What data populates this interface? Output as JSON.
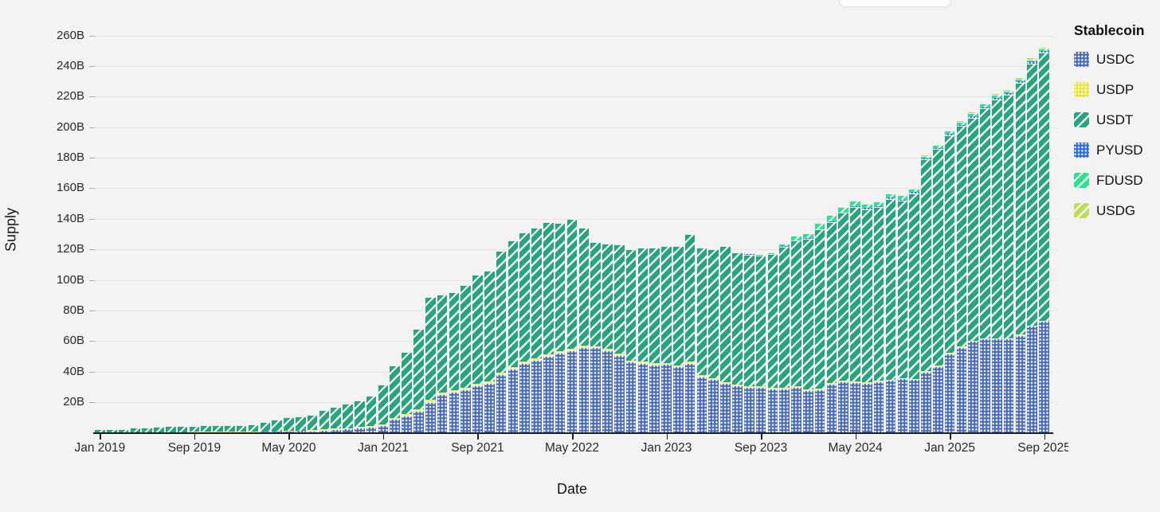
{
  "axes": {
    "y_title": "Supply",
    "x_title": "Date"
  },
  "legend": {
    "title": "Stablecoin",
    "items": [
      {
        "id": "usdc",
        "label": "USDC",
        "color": "#4a6cb8",
        "pattern": "dots"
      },
      {
        "id": "usdp",
        "label": "USDP",
        "color": "#e8e53e",
        "pattern": "dots"
      },
      {
        "id": "usdt",
        "label": "USDT",
        "color": "#2aa47c",
        "pattern": "stripes"
      },
      {
        "id": "pyusd",
        "label": "PYUSD",
        "color": "#2b6be0",
        "pattern": "dots"
      },
      {
        "id": "fdusd",
        "label": "FDUSD",
        "color": "#2fe08d",
        "pattern": "stripes"
      },
      {
        "id": "usdg",
        "label": "USDG",
        "color": "#bcdc5a",
        "pattern": "stripes"
      }
    ]
  },
  "chart_data": {
    "type": "bar",
    "stacked": true,
    "title": "",
    "xlabel": "Date",
    "ylabel": "Supply",
    "unit": "billions",
    "ylim": [
      0,
      260
    ],
    "ytick_step": 20,
    "ytick_labels": [
      "20B",
      "40B",
      "60B",
      "80B",
      "100B",
      "120B",
      "140B",
      "160B",
      "180B",
      "200B",
      "220B",
      "240B",
      "260B"
    ],
    "xtick_labels": [
      "Jan 2019",
      "Sep 2019",
      "May 2020",
      "Jan 2021",
      "Sep 2021",
      "May 2022",
      "Jan 2023",
      "Sep 2023",
      "May 2024",
      "Jan 2025",
      "Sep 2025"
    ],
    "xtick_indices": [
      0,
      8,
      16,
      24,
      32,
      40,
      48,
      56,
      64,
      72,
      80
    ],
    "grid": true,
    "legend_position": "right",
    "legend_title": "Stablecoin",
    "categories": [
      "Jan 2019",
      "Feb 2019",
      "Mar 2019",
      "Apr 2019",
      "May 2019",
      "Jun 2019",
      "Jul 2019",
      "Aug 2019",
      "Sep 2019",
      "Oct 2019",
      "Nov 2019",
      "Dec 2019",
      "Jan 2020",
      "Feb 2020",
      "Mar 2020",
      "Apr 2020",
      "May 2020",
      "Jun 2020",
      "Jul 2020",
      "Aug 2020",
      "Sep 2020",
      "Oct 2020",
      "Nov 2020",
      "Dec 2020",
      "Jan 2021",
      "Feb 2021",
      "Mar 2021",
      "Apr 2021",
      "May 2021",
      "Jun 2021",
      "Jul 2021",
      "Aug 2021",
      "Sep 2021",
      "Oct 2021",
      "Nov 2021",
      "Dec 2021",
      "Jan 2022",
      "Feb 2022",
      "Mar 2022",
      "Apr 2022",
      "May 2022",
      "Jun 2022",
      "Jul 2022",
      "Aug 2022",
      "Sep 2022",
      "Oct 2022",
      "Nov 2022",
      "Dec 2022",
      "Jan 2023",
      "Feb 2023",
      "Mar 2023",
      "Apr 2023",
      "May 2023",
      "Jun 2023",
      "Jul 2023",
      "Aug 2023",
      "Sep 2023",
      "Oct 2023",
      "Nov 2023",
      "Dec 2023",
      "Jan 2024",
      "Feb 2024",
      "Mar 2024",
      "Apr 2024",
      "May 2024",
      "Jun 2024",
      "Jul 2024",
      "Aug 2024",
      "Sep 2024",
      "Oct 2024",
      "Nov 2024",
      "Dec 2024",
      "Jan 2025",
      "Feb 2025",
      "Mar 2025",
      "Apr 2025",
      "May 2025",
      "Jun 2025",
      "Jul 2025",
      "Aug 2025",
      "Sep 2025"
    ],
    "series": [
      {
        "name": "USDC",
        "values": [
          0.25,
          0.25,
          0.25,
          0.3,
          0.35,
          0.35,
          0.4,
          0.4,
          0.45,
          0.45,
          0.5,
          0.5,
          0.45,
          0.45,
          0.7,
          0.7,
          1.0,
          1.1,
          1.4,
          1.8,
          2.5,
          2.8,
          3.5,
          3.9,
          5.2,
          9.0,
          11.3,
          14.4,
          20.3,
          25.5,
          27.0,
          28.5,
          31.0,
          32.5,
          38.5,
          42.0,
          45.5,
          47.5,
          50.5,
          52.5,
          54.0,
          56.0,
          55.8,
          54.0,
          50.9,
          46.5,
          45.8,
          44.7,
          45.0,
          43.3,
          45.7,
          37.0,
          35.0,
          32.5,
          31.0,
          30.0,
          30.0,
          29.0,
          29.0,
          30.0,
          28.0,
          28.5,
          32.0,
          33.5,
          33.0,
          32.5,
          33.5,
          34.5,
          35.5,
          35.0,
          40.0,
          43.5,
          52.0,
          56.0,
          60.0,
          61.5,
          61.5,
          61.5,
          64.0,
          70.0,
          73.0
        ]
      },
      {
        "name": "USDP",
        "values": [
          0.1,
          0.1,
          0.1,
          0.1,
          0.1,
          0.1,
          0.1,
          0.1,
          0.1,
          0.2,
          0.2,
          0.2,
          0.2,
          0.2,
          0.2,
          0.25,
          0.25,
          0.25,
          0.25,
          0.3,
          0.3,
          0.3,
          0.3,
          0.35,
          0.4,
          0.6,
          0.8,
          1.0,
          1.2,
          1.0,
          1.0,
          1.0,
          0.95,
          0.95,
          1.0,
          1.0,
          1.0,
          1.0,
          1.0,
          1.0,
          1.0,
          1.0,
          1.0,
          1.0,
          0.9,
          0.9,
          0.9,
          0.9,
          0.8,
          0.8,
          0.8,
          0.7,
          0.6,
          0.6,
          0.5,
          0.5,
          0.5,
          0.5,
          0.5,
          0.5,
          0.4,
          0.4,
          0.4,
          0.4,
          0.4,
          0.4,
          0.4,
          0.4,
          0.3,
          0.3,
          0.3,
          0.3,
          0.3,
          0.3,
          0.3,
          0.2,
          0.2,
          0.2,
          0.2,
          0.2,
          0.2
        ]
      },
      {
        "name": "USDT",
        "values": [
          2.0,
          2.0,
          2.1,
          2.8,
          3.0,
          3.6,
          4.0,
          4.0,
          4.1,
          4.1,
          4.1,
          4.1,
          4.3,
          4.6,
          6.2,
          7.8,
          8.8,
          9.2,
          10.0,
          12.9,
          14.4,
          15.9,
          17.4,
          20.0,
          26.0,
          34.6,
          40.8,
          52.5,
          67.3,
          63.8,
          64.0,
          67.0,
          71.5,
          72.5,
          79.5,
          83.0,
          84.5,
          85.5,
          86.5,
          84.0,
          85.0,
          77.0,
          68.2,
          69.0,
          71.2,
          72.6,
          74.3,
          75.4,
          76.2,
          77.9,
          83.5,
          83.3,
          84.4,
          88.9,
          86.5,
          86.2,
          85.5,
          87.4,
          92.3,
          95.3,
          98.5,
          104.0,
          105.5,
          110.0,
          114.5,
          113.5,
          113.8,
          118.0,
          116.0,
          121.5,
          138.5,
          142.0,
          142.5,
          144.5,
          146.0,
          150.5,
          156.5,
          159.5,
          165.0,
          171.5,
          175.5
        ]
      },
      {
        "name": "PYUSD",
        "values": [
          0,
          0,
          0,
          0,
          0,
          0,
          0,
          0,
          0,
          0,
          0,
          0,
          0,
          0,
          0,
          0,
          0,
          0,
          0,
          0,
          0,
          0,
          0,
          0,
          0,
          0,
          0,
          0,
          0,
          0,
          0,
          0,
          0,
          0,
          0,
          0,
          0,
          0,
          0,
          0,
          0,
          0,
          0,
          0,
          0,
          0,
          0,
          0,
          0,
          0,
          0,
          0,
          0,
          0,
          0,
          0.1,
          0.1,
          0.15,
          0.2,
          0.2,
          0.3,
          0.3,
          0.3,
          0.4,
          0.5,
          0.6,
          0.7,
          0.9,
          0.9,
          0.6,
          0.5,
          0.5,
          0.8,
          0.8,
          0.8,
          0.9,
          0.9,
          0.9,
          1.0,
          1.2,
          1.3
        ]
      },
      {
        "name": "FDUSD",
        "values": [
          0,
          0,
          0,
          0,
          0,
          0,
          0,
          0,
          0,
          0,
          0,
          0,
          0,
          0,
          0,
          0,
          0,
          0,
          0,
          0,
          0,
          0,
          0,
          0,
          0,
          0,
          0,
          0,
          0,
          0,
          0,
          0,
          0,
          0,
          0,
          0,
          0,
          0,
          0,
          0,
          0,
          0,
          0,
          0,
          0,
          0,
          0,
          0,
          0,
          0,
          0,
          0,
          0,
          0,
          0,
          0.3,
          0.4,
          0.6,
          2.0,
          3.0,
          3.5,
          4.0,
          4.3,
          3.5,
          3.5,
          3.0,
          3.0,
          3.0,
          2.8,
          2.5,
          2.0,
          2.0,
          2.0,
          2.0,
          2.2,
          2.2,
          2.0,
          1.6,
          1.5,
          1.5,
          1.5
        ]
      },
      {
        "name": "USDG",
        "values": [
          0,
          0,
          0,
          0,
          0,
          0,
          0,
          0,
          0,
          0,
          0,
          0,
          0,
          0,
          0,
          0,
          0,
          0,
          0,
          0,
          0,
          0,
          0,
          0,
          0,
          0,
          0,
          0,
          0,
          0,
          0,
          0,
          0,
          0,
          0,
          0,
          0,
          0,
          0,
          0,
          0,
          0,
          0,
          0,
          0,
          0,
          0,
          0,
          0,
          0,
          0,
          0,
          0,
          0,
          0,
          0,
          0,
          0,
          0,
          0,
          0,
          0,
          0,
          0,
          0,
          0,
          0,
          0,
          0,
          0,
          0.1,
          0.2,
          0.3,
          0.3,
          0.3,
          0.4,
          0.4,
          0.4,
          0.5,
          0.6,
          0.7
        ]
      }
    ]
  }
}
